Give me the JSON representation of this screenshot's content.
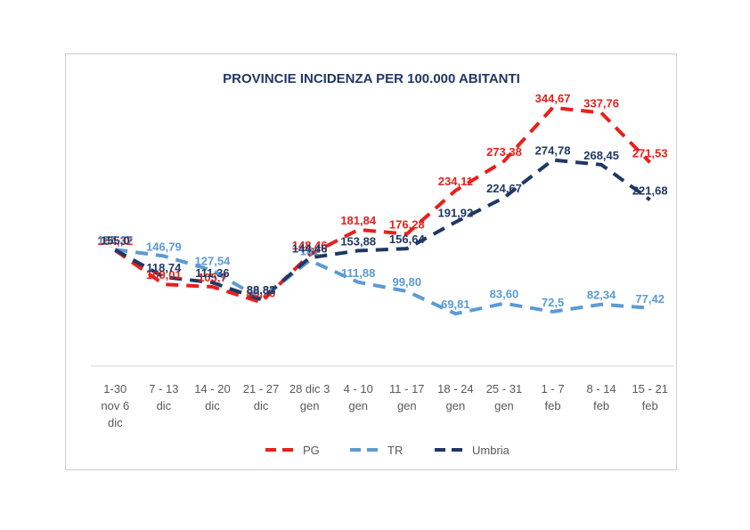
{
  "chart_data": {
    "type": "line",
    "title": "PROVINCIE INCIDENZA PER 100.000 ABITANTI",
    "xlabel": "",
    "ylabel": "",
    "categories": [
      [
        "1-30",
        "nov 6",
        "dic"
      ],
      [
        "7 - 13",
        "dic"
      ],
      [
        "14 - 20",
        "dic"
      ],
      [
        "21 - 27",
        "dic"
      ],
      [
        "28 dic 3",
        "gen"
      ],
      [
        "4 - 10",
        "gen"
      ],
      [
        "11 - 17",
        "gen"
      ],
      [
        "18 - 24",
        "gen"
      ],
      [
        "25 - 31",
        "gen"
      ],
      [
        "1 - 7",
        "feb"
      ],
      [
        "8 - 14",
        "feb"
      ],
      [
        "15 - 21",
        "feb"
      ]
    ],
    "series": [
      {
        "name": "PG",
        "color": "#e8201c",
        "values": [
          154.32,
          109.01,
          105.7,
          85.2,
          148.46,
          181.84,
          176.28,
          234.11,
          273.38,
          344.67,
          337.76,
          271.53
        ],
        "labels": [
          "154,32",
          "109,01",
          "105,7",
          "85,20",
          "148,46",
          "181,84",
          "176,28",
          "234,11",
          "273,38",
          "344,67",
          "337,76",
          "271,53"
        ]
      },
      {
        "name": "TR",
        "color": "#5b9bd5",
        "values": [
          155.37,
          146.79,
          127.54,
          89.35,
          141.0,
          111.88,
          99.8,
          69.81,
          83.6,
          72.5,
          82.34,
          77.42
        ],
        "labels": [
          "155,37",
          "146,79",
          "127,54",
          "89,35",
          "141",
          "111,88",
          "99,80",
          "69,81",
          "83,60",
          "72,5",
          "82,34",
          "77,42"
        ]
      },
      {
        "name": "Umbria",
        "color": "#1f3864",
        "values": [
          155.0,
          118.74,
          111.36,
          88.83,
          144.46,
          153.88,
          156.64,
          191.92,
          224.67,
          274.78,
          268.45,
          221.68
        ],
        "labels": [
          "155,0",
          "118,74",
          "111,36",
          "88,83",
          "144,46",
          "153,88",
          "156,64",
          "191,92",
          "224,67",
          "274,78",
          "268,45",
          "221,68"
        ]
      }
    ],
    "ylim": [
      0,
      380
    ],
    "grid": false,
    "legend_position": "bottom"
  }
}
